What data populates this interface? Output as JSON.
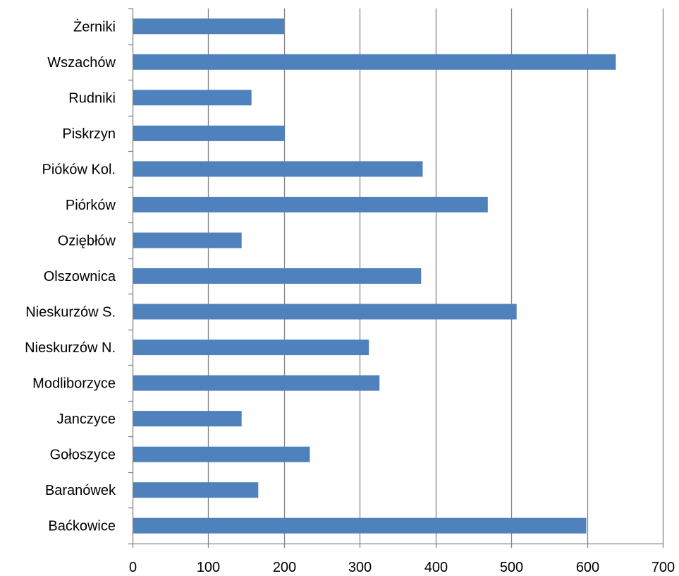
{
  "chart_data": {
    "type": "bar",
    "orientation": "horizontal",
    "categories": [
      "Żerniki",
      "Wszachów",
      "Rudniki",
      "Piskrzyn",
      "Pióków Kol.",
      "Piórków",
      "Oziębłów",
      "Olszownica",
      "Nieskurzów S.",
      "Nieskurzów N.",
      "Modliborzyce",
      "Janczyce",
      "Gołoszyce",
      "Baranówek",
      "Baćkowice"
    ],
    "values": [
      200,
      638,
      157,
      201,
      383,
      469,
      144,
      381,
      507,
      312,
      326,
      144,
      234,
      166,
      599
    ],
    "xlim": [
      0,
      700
    ],
    "xticks": [
      "0",
      "100",
      "200",
      "300",
      "400",
      "500",
      "600",
      "700"
    ],
    "title": "",
    "xlabel": "",
    "ylabel": "",
    "grid": "vertical",
    "legend": "none",
    "bar_color": "#4f81bd",
    "grid_color": "#868686"
  }
}
